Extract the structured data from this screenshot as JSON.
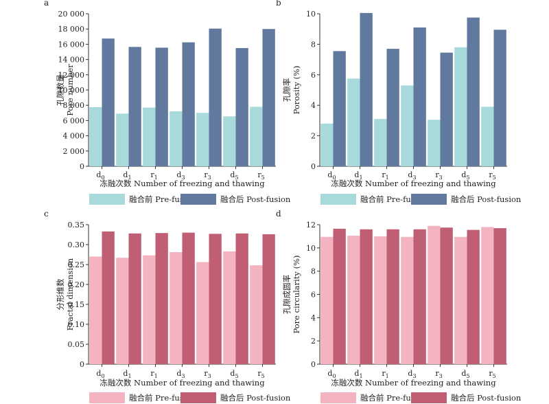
{
  "colors": {
    "upper_pre": "#a8dadc",
    "upper_post": "#62799f",
    "lower_pre": "#f4b3c0",
    "lower_post": "#c05f74"
  },
  "chart_data": [
    {
      "panel": "a",
      "type": "bar",
      "categories": [
        "d0",
        "d1",
        "r1",
        "d3",
        "r3",
        "d5",
        "r5"
      ],
      "category_labels": [
        {
          "base": "d",
          "sub": "0"
        },
        {
          "base": "d",
          "sub": "1"
        },
        {
          "base": "r",
          "sub": "1"
        },
        {
          "base": "d",
          "sub": "3"
        },
        {
          "base": "r",
          "sub": "3"
        },
        {
          "base": "d",
          "sub": "5"
        },
        {
          "base": "r",
          "sub": "5"
        }
      ],
      "series": [
        {
          "name": "融合前 Pre-fusion",
          "values": [
            7750,
            6900,
            7700,
            7200,
            7000,
            6550,
            7800
          ]
        },
        {
          "name": "融合后 Post-fusion",
          "values": [
            16750,
            15650,
            15550,
            16250,
            18050,
            15500,
            18000
          ]
        }
      ],
      "ylabel_cn": "孔隙数量",
      "ylabel_en": "Pore number",
      "xlabel": "冻融次数 Number of freezing and thawing",
      "ylim": [
        0,
        20000
      ],
      "yticks": [
        "0",
        "2 000",
        "4 000",
        "6 000",
        "8 000",
        "10 000",
        "12 000",
        "14 000",
        "16 000",
        "18 000",
        "20 000"
      ]
    },
    {
      "panel": "b",
      "type": "bar",
      "categories": [
        "d0",
        "d1",
        "r1",
        "d3",
        "r3",
        "d5",
        "r5"
      ],
      "category_labels": [
        {
          "base": "d",
          "sub": "0"
        },
        {
          "base": "d",
          "sub": "1"
        },
        {
          "base": "r",
          "sub": "1"
        },
        {
          "base": "d",
          "sub": "3"
        },
        {
          "base": "r",
          "sub": "3"
        },
        {
          "base": "d",
          "sub": "5"
        },
        {
          "base": "r",
          "sub": "5"
        }
      ],
      "series": [
        {
          "name": "融合前 Pre-fusion",
          "values": [
            2.8,
            5.75,
            3.1,
            5.3,
            3.05,
            7.8,
            3.9
          ]
        },
        {
          "name": "融合后 Post-fusion",
          "values": [
            7.55,
            10.05,
            7.7,
            9.1,
            7.45,
            9.75,
            8.95
          ]
        }
      ],
      "ylabel_cn": "孔隙率",
      "ylabel_en": "Porosity (%)",
      "xlabel": "冻融次数 Number of freezing and thawing",
      "ylim": [
        0,
        10
      ],
      "yticks": [
        "0",
        "2",
        "4",
        "6",
        "8",
        "10"
      ]
    },
    {
      "panel": "c",
      "type": "bar",
      "categories": [
        "d0",
        "d1",
        "r1",
        "d3",
        "r3",
        "d5",
        "r5"
      ],
      "category_labels": [
        {
          "base": "d",
          "sub": "0"
        },
        {
          "base": "d",
          "sub": "1"
        },
        {
          "base": "r",
          "sub": "1"
        },
        {
          "base": "d",
          "sub": "3"
        },
        {
          "base": "r",
          "sub": "3"
        },
        {
          "base": "d",
          "sub": "5"
        },
        {
          "base": "r",
          "sub": "5"
        }
      ],
      "series": [
        {
          "name": "融合前 Pre-fusion",
          "values": [
            0.27,
            0.267,
            0.273,
            0.281,
            0.256,
            0.283,
            0.248
          ]
        },
        {
          "name": "融合后 Post-fusion",
          "values": [
            0.333,
            0.328,
            0.329,
            0.33,
            0.327,
            0.328,
            0.326
          ]
        }
      ],
      "ylabel_cn": "分形维数",
      "ylabel_en": "Fractal dimension",
      "xlabel": "冻融次数 Number of freezing and thawing",
      "ylim": [
        0,
        0.35
      ],
      "yticks": [
        "0",
        "0.05",
        "0.10",
        "0.15",
        "0.20",
        "0.25",
        "0.30",
        "0.35"
      ]
    },
    {
      "panel": "d",
      "type": "bar",
      "categories": [
        "d0",
        "d1",
        "r1",
        "d3",
        "r3",
        "d5",
        "r5"
      ],
      "category_labels": [
        {
          "base": "d",
          "sub": "0"
        },
        {
          "base": "d",
          "sub": "1"
        },
        {
          "base": "r",
          "sub": "1"
        },
        {
          "base": "d",
          "sub": "3"
        },
        {
          "base": "r",
          "sub": "3"
        },
        {
          "base": "d",
          "sub": "5"
        },
        {
          "base": "r",
          "sub": "5"
        }
      ],
      "series": [
        {
          "name": "融合前 Pre-fusion",
          "values": [
            10.95,
            11.05,
            11.0,
            10.95,
            11.9,
            10.95,
            11.8
          ]
        },
        {
          "name": "融合后 Post-fusion",
          "values": [
            11.65,
            11.6,
            11.6,
            11.6,
            11.75,
            11.55,
            11.7
          ]
        }
      ],
      "ylabel_cn": "孔隙成圆率",
      "ylabel_en": "Pore circularity (%)",
      "xlabel": "冻融次数 Number of freezing and thawing",
      "ylim": [
        0,
        12
      ],
      "yticks": [
        "0",
        "2",
        "4",
        "6",
        "8",
        "10",
        "12"
      ]
    }
  ]
}
